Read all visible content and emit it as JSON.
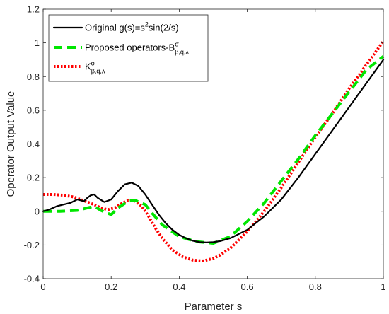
{
  "chart_data": {
    "type": "line",
    "xlabel": "Parameter s",
    "ylabel": "Operator Output Value",
    "xlim": [
      0,
      1
    ],
    "ylim": [
      -0.4,
      1.2
    ],
    "xticks": [
      0,
      0.2,
      0.4,
      0.6,
      0.8,
      1
    ],
    "yticks": [
      -0.4,
      -0.2,
      0,
      0.2,
      0.4,
      0.6,
      0.8,
      1,
      1.2
    ],
    "xtick_labels": [
      "0",
      "0.2",
      "0.4",
      "0.6",
      "0.8",
      "1"
    ],
    "ytick_labels": [
      "-0.4",
      "-0.2",
      "0",
      "0.2",
      "0.4",
      "0.6",
      "0.8",
      "1",
      "1.2"
    ],
    "grid": false,
    "legend_position": "top-left",
    "series": [
      {
        "name": "Original g(s)=s²sin(2/s)",
        "legend": {
          "base": "Original g(s)=s",
          "sup": "2",
          "rest": "sin(2/s)"
        },
        "color": "#000000",
        "style": "solid",
        "x": [
          0,
          0.02,
          0.04,
          0.06,
          0.08,
          0.1,
          0.12,
          0.13,
          0.14,
          0.15,
          0.16,
          0.18,
          0.2,
          0.22,
          0.24,
          0.26,
          0.28,
          0.3,
          0.32,
          0.34,
          0.36,
          0.38,
          0.4,
          0.42,
          0.44,
          0.46,
          0.48,
          0.5,
          0.52,
          0.55,
          0.6,
          0.65,
          0.7,
          0.75,
          0.8,
          0.85,
          0.9,
          0.95,
          1
        ],
        "y": [
          0,
          0.012,
          0.03,
          0.04,
          0.05,
          0.07,
          0.06,
          0.08,
          0.095,
          0.1,
          0.08,
          0.055,
          0.07,
          0.12,
          0.16,
          0.17,
          0.15,
          0.1,
          0.04,
          -0.02,
          -0.07,
          -0.11,
          -0.14,
          -0.16,
          -0.175,
          -0.183,
          -0.185,
          -0.183,
          -0.177,
          -0.16,
          -0.11,
          -0.03,
          0.07,
          0.2,
          0.34,
          0.48,
          0.62,
          0.76,
          0.9
        ]
      },
      {
        "name": "Proposed operators-B^σ_{β,q,λ}",
        "legend": {
          "base": "Proposed operators-B",
          "sup": "σ",
          "sub": "β,q,λ"
        },
        "color": "#00e600",
        "style": "dashed",
        "x": [
          0,
          0.05,
          0.1,
          0.13,
          0.15,
          0.17,
          0.2,
          0.22,
          0.25,
          0.27,
          0.3,
          0.32,
          0.35,
          0.4,
          0.45,
          0.5,
          0.55,
          0.6,
          0.65,
          0.7,
          0.75,
          0.8,
          0.85,
          0.9,
          0.95,
          1
        ],
        "y": [
          0,
          0,
          0.005,
          0.02,
          0.03,
          0.005,
          -0.02,
          0.02,
          0.06,
          0.065,
          0.04,
          -0.01,
          -0.08,
          -0.15,
          -0.18,
          -0.19,
          -0.15,
          -0.06,
          0.05,
          0.18,
          0.31,
          0.45,
          0.58,
          0.71,
          0.84,
          0.92
        ]
      },
      {
        "name": "K^σ_{β,q,λ}",
        "legend": {
          "base": "K",
          "sup": "σ",
          "sub": "β,q,λ"
        },
        "color": "#ff0000",
        "style": "dotted",
        "x": [
          0,
          0.03,
          0.06,
          0.09,
          0.11,
          0.13,
          0.15,
          0.17,
          0.19,
          0.21,
          0.23,
          0.25,
          0.27,
          0.29,
          0.31,
          0.33,
          0.35,
          0.38,
          0.41,
          0.44,
          0.47,
          0.5,
          0.52,
          0.55,
          0.6,
          0.65,
          0.7,
          0.75,
          0.8,
          0.85,
          0.9,
          0.95,
          1
        ],
        "y": [
          0.1,
          0.1,
          0.095,
          0.085,
          0.07,
          0.055,
          0.04,
          0.02,
          0.01,
          0.02,
          0.045,
          0.065,
          0.06,
          0.03,
          -0.03,
          -0.1,
          -0.16,
          -0.23,
          -0.27,
          -0.29,
          -0.295,
          -0.28,
          -0.26,
          -0.22,
          -0.12,
          0,
          0.14,
          0.29,
          0.44,
          0.58,
          0.73,
          0.87,
          1.01
        ]
      }
    ]
  }
}
